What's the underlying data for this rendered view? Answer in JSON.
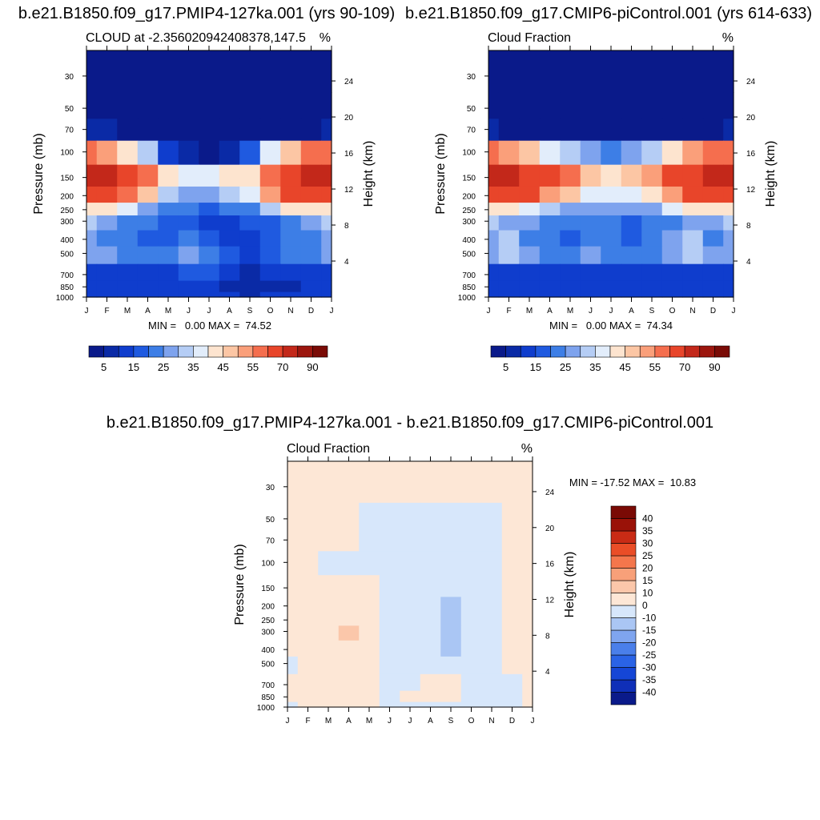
{
  "figure": {
    "panels": [
      {
        "title": "b.e21.B1850.f09_g17.PMIP4-127ka.001 (yrs 90-109)",
        "left_label": "CLOUD at -2.356020942408378,147.5",
        "right_label": "%",
        "ylabel_left": "Pressure (mb)",
        "ylabel_right": "Height (km)",
        "stats": "MIN =   0.00 MAX =  74.52"
      },
      {
        "title": "b.e21.B1850.f09_g17.CMIP6-piControl.001 (yrs 614-633)",
        "left_label": "Cloud Fraction",
        "right_label": "%",
        "ylabel_left": "Pressure (mb)",
        "ylabel_right": "Height (km)",
        "stats": "MIN =   0.00 MAX =  74.34"
      },
      {
        "title": "b.e21.B1850.f09_g17.PMIP4-127ka.001 - b.e21.B1850.f09_g17.CMIP6-piControl.001",
        "left_label": "Cloud Fraction",
        "right_label": "%",
        "ylabel_left": "Pressure (mb)",
        "ylabel_right": "Height (km)",
        "stats": "MIN = -17.52 MAX =  10.83"
      }
    ]
  },
  "chart_data": [
    {
      "type": "heatmap",
      "x_categories": [
        "J",
        "F",
        "M",
        "A",
        "M",
        "J",
        "J",
        "A",
        "S",
        "O",
        "N",
        "D",
        "J"
      ],
      "pressure_ticks": [
        30,
        50,
        70,
        100,
        150,
        200,
        250,
        300,
        400,
        500,
        700,
        850,
        1000
      ],
      "height_ticks": [
        4,
        8,
        12,
        16,
        20,
        24
      ],
      "levels_mb": [
        30,
        50,
        70,
        100,
        150,
        200,
        250,
        300,
        400,
        500,
        700,
        850,
        1000
      ],
      "z": [
        [
          2,
          2,
          2,
          2,
          2,
          2,
          2,
          2,
          2,
          2,
          2,
          2,
          2
        ],
        [
          2,
          2,
          2,
          2,
          2,
          2,
          2,
          2,
          2,
          2,
          2,
          2,
          2
        ],
        [
          8,
          5,
          3,
          2,
          2,
          2,
          2,
          2,
          2,
          2,
          2,
          4,
          8
        ],
        [
          55,
          50,
          42,
          30,
          12,
          5,
          4,
          5,
          15,
          35,
          48,
          55,
          55
        ],
        [
          70,
          72,
          65,
          55,
          40,
          38,
          36,
          40,
          42,
          58,
          68,
          72,
          70
        ],
        [
          62,
          66,
          58,
          45,
          32,
          28,
          25,
          30,
          35,
          50,
          62,
          66,
          62
        ],
        [
          40,
          42,
          35,
          25,
          22,
          20,
          18,
          20,
          24,
          30,
          40,
          42,
          40
        ],
        [
          30,
          28,
          24,
          20,
          16,
          15,
          14,
          12,
          15,
          18,
          24,
          28,
          30
        ],
        [
          26,
          24,
          20,
          15,
          18,
          22,
          16,
          10,
          12,
          16,
          20,
          22,
          26
        ],
        [
          28,
          26,
          24,
          20,
          22,
          26,
          22,
          15,
          12,
          18,
          20,
          22,
          28
        ],
        [
          14,
          14,
          13,
          12,
          14,
          16,
          15,
          10,
          8,
          10,
          12,
          13,
          14
        ],
        [
          12,
          12,
          11,
          10,
          11,
          12,
          10,
          9,
          6,
          6,
          9,
          11,
          12
        ],
        [
          12,
          12,
          11,
          10,
          11,
          12,
          11,
          10,
          9,
          10,
          10,
          11,
          12
        ]
      ],
      "colorbar_labels": [
        "5",
        "15",
        "25",
        "35",
        "45",
        "55",
        "70",
        "90"
      ],
      "colorbar_colors": [
        "#0a1a8a",
        "#0a2aa6",
        "#0f3dcd",
        "#1f5ae0",
        "#3d7ee6",
        "#7ea3ee",
        "#b5cdf5",
        "#e2edfb",
        "#fde4cf",
        "#fcc6a4",
        "#fa9f7a",
        "#f56e4e",
        "#e8452a",
        "#c3281a",
        "#9c160e",
        "#7a0b06"
      ],
      "colorbar_bounds": [
        0,
        5,
        10,
        15,
        20,
        25,
        30,
        35,
        40,
        45,
        50,
        55,
        60,
        70,
        80,
        90,
        100
      ]
    },
    {
      "type": "heatmap",
      "x_categories": [
        "J",
        "F",
        "M",
        "A",
        "M",
        "J",
        "J",
        "A",
        "S",
        "O",
        "N",
        "D",
        "J"
      ],
      "pressure_ticks": [
        30,
        50,
        70,
        100,
        150,
        200,
        250,
        300,
        400,
        500,
        700,
        850,
        1000
      ],
      "height_ticks": [
        4,
        8,
        12,
        16,
        20,
        24
      ],
      "levels_mb": [
        30,
        50,
        70,
        100,
        150,
        200,
        250,
        300,
        400,
        500,
        700,
        850,
        1000
      ],
      "z": [
        [
          2,
          2,
          2,
          2,
          2,
          2,
          2,
          2,
          2,
          2,
          2,
          2,
          2
        ],
        [
          2,
          2,
          2,
          2,
          2,
          2,
          2,
          2,
          2,
          2,
          2,
          2,
          2
        ],
        [
          6,
          4,
          3,
          2,
          2,
          2,
          2,
          2,
          2,
          2,
          2,
          3,
          6
        ],
        [
          55,
          52,
          45,
          38,
          30,
          25,
          22,
          25,
          30,
          42,
          50,
          55,
          55
        ],
        [
          70,
          72,
          68,
          62,
          55,
          45,
          40,
          45,
          50,
          60,
          68,
          72,
          70
        ],
        [
          62,
          66,
          60,
          52,
          45,
          38,
          35,
          38,
          42,
          52,
          62,
          66,
          62
        ],
        [
          42,
          44,
          38,
          30,
          28,
          25,
          25,
          25,
          28,
          35,
          42,
          44,
          42
        ],
        [
          30,
          28,
          25,
          22,
          20,
          20,
          22,
          18,
          20,
          22,
          26,
          28,
          30
        ],
        [
          26,
          30,
          24,
          20,
          18,
          22,
          24,
          16,
          22,
          25,
          30,
          24,
          26
        ],
        [
          28,
          30,
          26,
          22,
          24,
          26,
          24,
          22,
          24,
          28,
          30,
          26,
          28
        ],
        [
          14,
          14,
          13,
          12,
          13,
          14,
          14,
          13,
          12,
          12,
          13,
          13,
          14
        ],
        [
          12,
          12,
          11,
          10,
          11,
          12,
          10,
          11,
          10,
          10,
          11,
          11,
          12
        ],
        [
          12,
          12,
          11,
          10,
          11,
          12,
          11,
          11,
          10,
          10,
          11,
          11,
          12
        ]
      ],
      "colorbar_labels": [
        "5",
        "15",
        "25",
        "35",
        "45",
        "55",
        "70",
        "90"
      ],
      "colorbar_colors": [
        "#0a1a8a",
        "#0a2aa6",
        "#0f3dcd",
        "#1f5ae0",
        "#3d7ee6",
        "#7ea3ee",
        "#b5cdf5",
        "#e2edfb",
        "#fde4cf",
        "#fcc6a4",
        "#fa9f7a",
        "#f56e4e",
        "#e8452a",
        "#c3281a",
        "#9c160e",
        "#7a0b06"
      ],
      "colorbar_bounds": [
        0,
        5,
        10,
        15,
        20,
        25,
        30,
        35,
        40,
        45,
        50,
        55,
        60,
        70,
        80,
        90,
        100
      ]
    },
    {
      "type": "heatmap",
      "x_categories": [
        "J",
        "F",
        "M",
        "A",
        "M",
        "J",
        "J",
        "A",
        "S",
        "O",
        "N",
        "D",
        "J"
      ],
      "pressure_ticks": [
        30,
        50,
        70,
        100,
        150,
        200,
        250,
        300,
        400,
        500,
        700,
        850,
        1000
      ],
      "height_ticks": [
        4,
        8,
        12,
        16,
        20,
        24
      ],
      "levels_mb": [
        30,
        50,
        70,
        100,
        150,
        200,
        250,
        300,
        400,
        500,
        700,
        850,
        1000
      ],
      "z": [
        [
          2,
          2,
          2,
          2,
          2,
          2,
          2,
          2,
          2,
          2,
          2,
          2,
          2
        ],
        [
          2,
          2,
          2,
          2,
          -2,
          -2,
          -2,
          -2,
          -2,
          -2,
          -2,
          2,
          2
        ],
        [
          2,
          2,
          2,
          2,
          -2,
          -2,
          -2,
          -2,
          -2,
          -2,
          -2,
          2,
          2
        ],
        [
          2,
          2,
          -2,
          -2,
          -2,
          -2,
          -2,
          -2,
          -2,
          -2,
          -4,
          2,
          2
        ],
        [
          2,
          2,
          2,
          2,
          2,
          -2,
          -2,
          -2,
          -8,
          -8,
          -4,
          2,
          2
        ],
        [
          2,
          2,
          2,
          2,
          2,
          -2,
          -2,
          -2,
          -12,
          -8,
          -4,
          2,
          2
        ],
        [
          2,
          2,
          2,
          2,
          2,
          -2,
          -2,
          -2,
          -14,
          -8,
          -4,
          2,
          2
        ],
        [
          2,
          2,
          2,
          12,
          2,
          -2,
          -2,
          -2,
          -12,
          -8,
          -4,
          2,
          2
        ],
        [
          2,
          2,
          2,
          2,
          2,
          -2,
          -2,
          -2,
          -12,
          -8,
          -4,
          2,
          2
        ],
        [
          -2,
          2,
          2,
          2,
          2,
          -2,
          -2,
          -2,
          -8,
          -8,
          -4,
          2,
          2
        ],
        [
          2,
          2,
          2,
          2,
          2,
          -2,
          -2,
          2,
          2,
          -2,
          -2,
          -2,
          2
        ],
        [
          2,
          2,
          2,
          2,
          2,
          -2,
          2,
          2,
          2,
          -2,
          -2,
          -2,
          2
        ],
        [
          -2,
          2,
          2,
          2,
          2,
          -2,
          -2,
          -2,
          -2,
          -2,
          -2,
          -2,
          2
        ]
      ],
      "colorbar_labels": [
        "40",
        "35",
        "30",
        "25",
        "20",
        "15",
        "10",
        "0",
        "-10",
        "-15",
        "-20",
        "-25",
        "-30",
        "-35",
        "-40"
      ],
      "colorbar_colors": [
        "#0a1a8a",
        "#0f2fb8",
        "#1546d6",
        "#2a63e6",
        "#4a7fea",
        "#7fa5ef",
        "#aac6f4",
        "#d7e7fb",
        "#fde7d6",
        "#fbc7aa",
        "#f8a079",
        "#f4764c",
        "#ea4d27",
        "#c92b15",
        "#9a1208",
        "#7a0a05"
      ],
      "colorbar_bounds": [
        -50,
        -40,
        -35,
        -30,
        -25,
        -20,
        -15,
        -10,
        0,
        10,
        15,
        20,
        25,
        30,
        35,
        40,
        50
      ]
    }
  ]
}
